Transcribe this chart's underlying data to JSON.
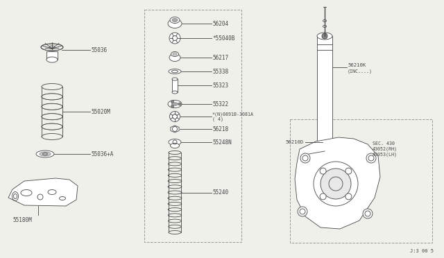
{
  "bg_color": "#f0f0eb",
  "line_color": "#444444",
  "page_ref": "J:3 00 5",
  "parts_left": [
    "55036",
    "55020M",
    "55036+A",
    "55180M"
  ],
  "parts_center": [
    "56204",
    "*55040B",
    "56217",
    "55338",
    "55323",
    "55322",
    "*(N)0891B-3081A",
    "( 4)",
    "56218",
    "55248N",
    "55240"
  ],
  "parts_right": [
    "56210K",
    "(INC....)",
    "56210D",
    "SEC. 430",
    "43052(RH)",
    "43053(LH)"
  ]
}
